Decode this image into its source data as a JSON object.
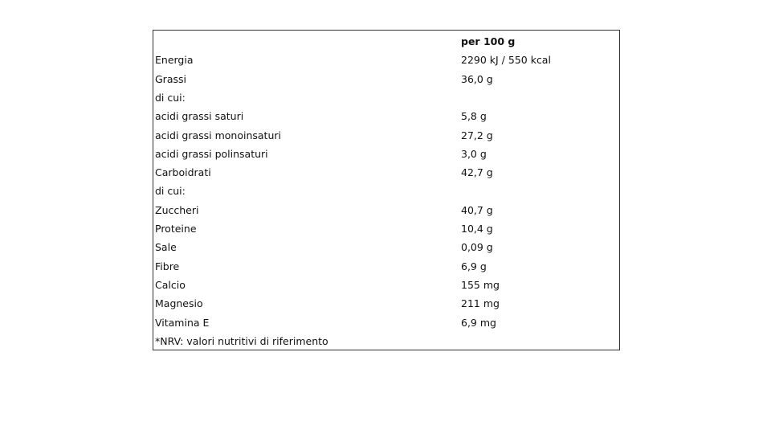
{
  "table": {
    "header": "per 100 g",
    "rows": [
      [
        "Energia",
        "2290 kJ / 550 kcal"
      ],
      [
        "Grassi",
        "36,0 g"
      ],
      [
        "di cui:"
      ],
      [
        "acidi grassi saturi",
        "5,8 g"
      ],
      [
        "acidi grassi monoinsaturi",
        "27,2 g"
      ],
      [
        "acidi grassi polinsaturi",
        "3,0 g"
      ],
      [
        "Carboidrati",
        "42,7 g"
      ],
      [
        "di cui:"
      ],
      [
        "Zuccheri",
        "40,7 g"
      ],
      [
        "Proteine",
        "10,4 g"
      ],
      [
        "Sale",
        "0,09 g"
      ],
      [
        "Fibre",
        "6,9 g"
      ],
      [
        "Calcio",
        "155 mg"
      ],
      [
        "Magnesio",
        "211 mg"
      ],
      [
        "Vitamina E",
        "6,9 mg"
      ]
    ],
    "footnote": "*NRV: valori nutritivi di riferimento"
  }
}
